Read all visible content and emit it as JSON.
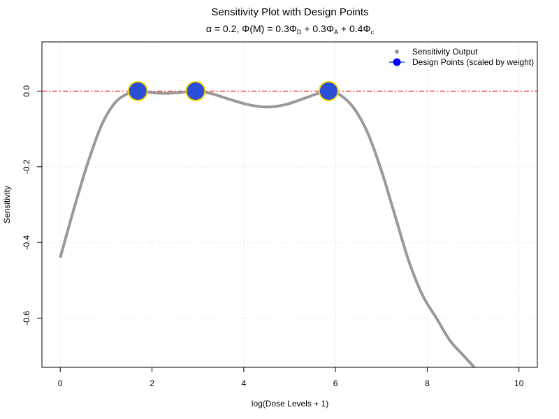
{
  "chart_data": {
    "type": "line",
    "title": "Sensitivity Plot with Design Points",
    "subtitle": {
      "prefix": "α = 0.2, Φ(M) = 0.3Φ",
      "d_sub": "D",
      "mid1": " + 0.3Φ",
      "a_sub": "A",
      "mid2": " + 0.4Φ",
      "c_sub": "c"
    },
    "xlabel": "log(Dose Levels + 1)",
    "ylabel": "Sensitivity",
    "xlim": [
      -0.4,
      10.4
    ],
    "ylim": [
      -0.73,
      0.13
    ],
    "x_ticks": [
      0,
      2,
      4,
      6,
      8,
      10
    ],
    "x_tick_labels": [
      "0",
      "2",
      "4",
      "6",
      "8",
      "10"
    ],
    "y_ticks": [
      0.0,
      -0.2,
      -0.4,
      -0.6
    ],
    "y_tick_labels": [
      "0.0",
      "-0.2",
      "-0.4",
      "-0.6"
    ],
    "grid": true,
    "reference_line": {
      "y": 0,
      "color": "#ff0000",
      "style": "dashdot"
    },
    "series": [
      {
        "name": "Sensitivity Output",
        "kind": "line",
        "color": "#999999",
        "x": [
          0.0,
          0.3,
          0.6,
          0.9,
          1.2,
          1.5,
          1.7,
          2.0,
          2.3,
          2.6,
          2.95,
          3.3,
          3.7,
          4.1,
          4.5,
          4.9,
          5.3,
          5.6,
          5.85,
          6.1,
          6.4,
          6.7,
          7.0,
          7.3,
          7.6,
          7.9,
          8.2,
          8.5,
          8.8,
          9.1
        ],
        "y": [
          -0.44,
          -0.31,
          -0.19,
          -0.09,
          -0.03,
          -0.005,
          0.0,
          -0.004,
          -0.006,
          -0.004,
          0.0,
          -0.007,
          -0.022,
          -0.036,
          -0.042,
          -0.036,
          -0.02,
          -0.007,
          0.0,
          -0.01,
          -0.045,
          -0.11,
          -0.21,
          -0.33,
          -0.45,
          -0.54,
          -0.6,
          -0.66,
          -0.7,
          -0.74
        ]
      },
      {
        "name": "Design Points (scaled by weight)",
        "kind": "points",
        "color": "#2a4fd6",
        "edge_color": "#ffd700",
        "x": [
          1.69,
          2.95,
          5.85
        ],
        "y": [
          0.0,
          0.0,
          0.0
        ]
      }
    ],
    "legend": {
      "placement": "top-right",
      "entries": [
        "Sensitivity Output",
        "Design Points (scaled by weight)"
      ]
    }
  }
}
